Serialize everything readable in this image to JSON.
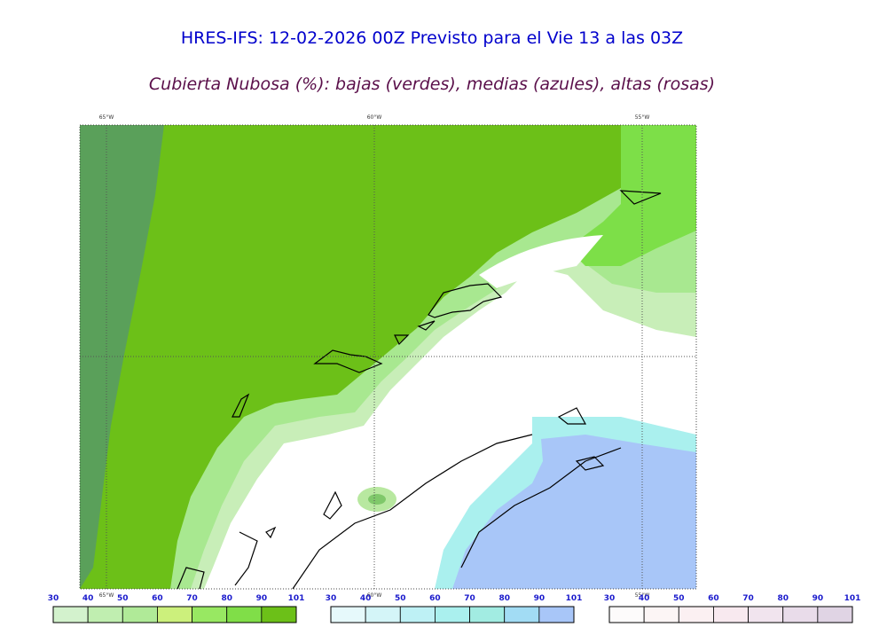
{
  "title": "HRES-IFS: 12-02-2026 00Z Previsto para el Vie 13 a las 03Z",
  "subtitle": "Cubierta Nubosa (%): bajas (verdes), medias (azules), altas (rosas)",
  "longitude_labels": [
    "65°W",
    "60°W",
    "55°W"
  ],
  "colorbars": [
    {
      "ticks": [
        30,
        40,
        50,
        60,
        70,
        80,
        90,
        101
      ],
      "colors": [
        "#d3f2cd",
        "#c0eeb0",
        "#b0ea98",
        "#ccf07c",
        "#98e862",
        "#80de48",
        "#6cc018"
      ]
    },
    {
      "ticks": [
        30,
        40,
        50,
        60,
        70,
        80,
        90,
        101
      ],
      "colors": [
        "#e6f9fb",
        "#d4f5f8",
        "#bef1f5",
        "#aaf0ee",
        "#a2ece2",
        "#a2dcf4",
        "#a8c6f8"
      ]
    },
    {
      "ticks": [
        30,
        40,
        50,
        60,
        70,
        80,
        90,
        101
      ],
      "colors": [
        "#fdfbfb",
        "#fcf5f5",
        "#fbf0f2",
        "#f8e9ef",
        "#f1e4ee",
        "#e9dcea",
        "#e0d4e4"
      ]
    }
  ]
}
